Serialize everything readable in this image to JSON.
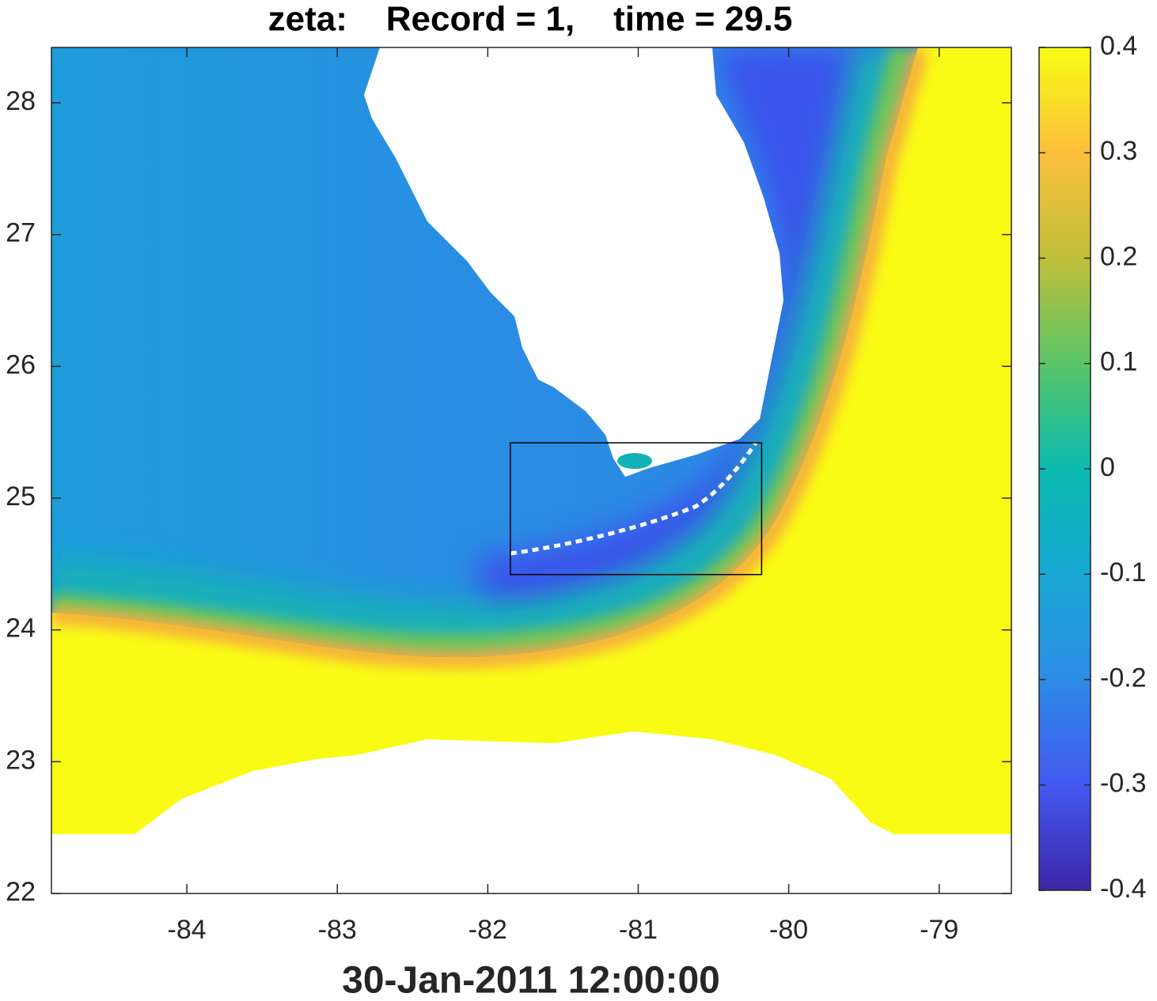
{
  "chart_data": {
    "type": "map",
    "title": "zeta:    Record = 1,    time = 29.5",
    "xlabel": "30-Jan-2011 12:00:00",
    "xlim": [
      -84.9,
      -78.52
    ],
    "ylim": [
      22,
      28.42
    ],
    "xticks": [
      -84,
      -83,
      -82,
      -81,
      -80,
      -79
    ],
    "yticks": [
      22,
      23,
      24,
      25,
      26,
      27,
      28
    ],
    "colorbar": {
      "clim": [
        -0.4,
        0.4
      ],
      "ticks": [
        -0.4,
        -0.3,
        -0.2,
        -0.1,
        0,
        0.1,
        0.2,
        0.3,
        0.4
      ],
      "colormap": [
        "#3e26a8",
        "#4358f1",
        "#2d8ce6",
        "#18a8d3",
        "#0bbbb0",
        "#5ac568",
        "#c0bf3a",
        "#fcbf3c",
        "#f9fb15"
      ]
    },
    "rectangle": {
      "x": [
        -81.85,
        -80.18
      ],
      "y": [
        24.42,
        25.42
      ]
    }
  }
}
